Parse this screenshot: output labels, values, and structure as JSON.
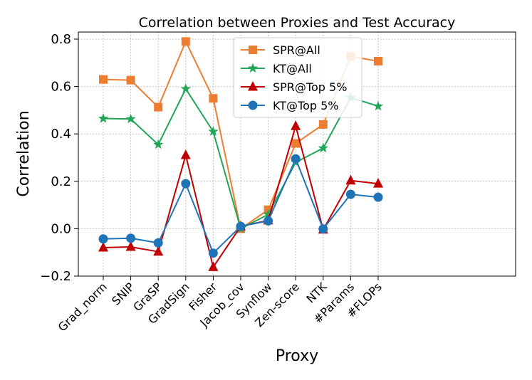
{
  "chart_data": {
    "type": "line",
    "title": "Correlation between Proxies and Test Accuracy",
    "xlabel": "Proxy",
    "ylabel": "Correlation",
    "ylim": [
      -0.2,
      0.83
    ],
    "yticks": [
      -0.2,
      0.0,
      0.2,
      0.4,
      0.6,
      0.8
    ],
    "ytick_labels": [
      "−0.2",
      "0.0",
      "0.2",
      "0.4",
      "0.6",
      "0.8"
    ],
    "grid": true,
    "legend_position": "top-center",
    "categories": [
      "Grad_norm",
      "SNIP",
      "GraSP",
      "GradSign",
      "Fisher",
      "Jacob_cov",
      "Synflow",
      "Zen-score",
      "NTK",
      "#Params",
      "#FLOPs"
    ],
    "series": [
      {
        "name": "SPR@All",
        "color": "#ed7d31",
        "marker": "square",
        "values": [
          0.63,
          0.627,
          0.513,
          0.79,
          0.55,
          0.0,
          0.08,
          0.36,
          0.44,
          0.727,
          0.707
        ]
      },
      {
        "name": "KT@All",
        "color": "#20a657",
        "marker": "star",
        "values": [
          0.465,
          0.463,
          0.355,
          0.59,
          0.41,
          0.0,
          0.06,
          0.28,
          0.34,
          0.553,
          0.517
        ]
      },
      {
        "name": "SPR@Top 5%",
        "color": "#c00000",
        "marker": "triangle",
        "values": [
          -0.08,
          -0.077,
          -0.097,
          0.31,
          -0.162,
          0.01,
          0.035,
          0.433,
          -0.004,
          0.203,
          0.19
        ]
      },
      {
        "name": "KT@Top 5%",
        "color": "#1f73b7",
        "marker": "circle",
        "values": [
          -0.043,
          -0.04,
          -0.06,
          0.19,
          -0.103,
          0.01,
          0.033,
          0.295,
          -0.001,
          0.145,
          0.133
        ]
      }
    ]
  }
}
